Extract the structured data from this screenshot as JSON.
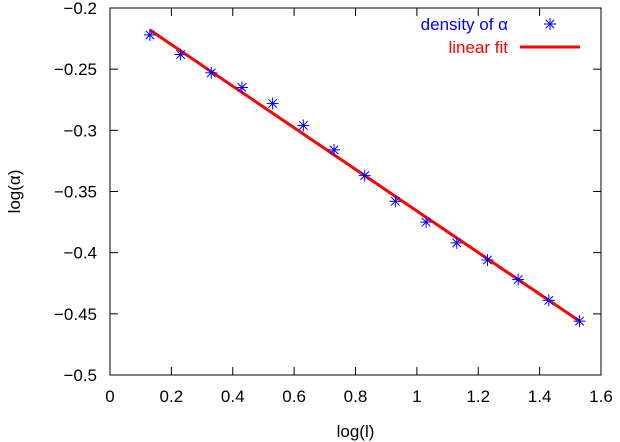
{
  "chart_data": {
    "type": "scatter",
    "xlabel": "log(l)",
    "ylabel": "log(α)",
    "xlim": [
      0,
      1.6
    ],
    "ylim": [
      -0.5,
      -0.2
    ],
    "xticks": [
      0,
      0.2,
      0.4,
      0.6,
      0.8,
      1,
      1.2,
      1.4,
      1.6
    ],
    "yticks": [
      -0.5,
      -0.45,
      -0.4,
      -0.35,
      -0.3,
      -0.25,
      -0.2
    ],
    "xtick_labels": [
      "0",
      "0.2",
      "0.4",
      "0.6",
      "0.8",
      "1",
      "1.2",
      "1.4",
      "1.6"
    ],
    "ytick_labels": [
      "−0.5",
      "−0.45",
      "−0.4",
      "−0.35",
      "−0.3",
      "−0.25",
      "−0.2"
    ],
    "grid": false,
    "legend_position": "top-right",
    "series": [
      {
        "name": "density of α",
        "kind": "points",
        "marker": "asterisk",
        "color": "#0000ff",
        "x": [
          0.13,
          0.23,
          0.33,
          0.43,
          0.53,
          0.63,
          0.73,
          0.83,
          0.93,
          1.03,
          1.13,
          1.23,
          1.33,
          1.43,
          1.53
        ],
        "y": [
          -0.222,
          -0.238,
          -0.253,
          -0.265,
          -0.278,
          -0.296,
          -0.316,
          -0.337,
          -0.358,
          -0.375,
          -0.392,
          -0.406,
          -0.422,
          -0.439,
          -0.456
        ]
      },
      {
        "name": "linear fit",
        "kind": "line",
        "color": "#ff0000",
        "x": [
          0.13,
          1.53
        ],
        "y": [
          -0.218,
          -0.456
        ]
      }
    ]
  }
}
